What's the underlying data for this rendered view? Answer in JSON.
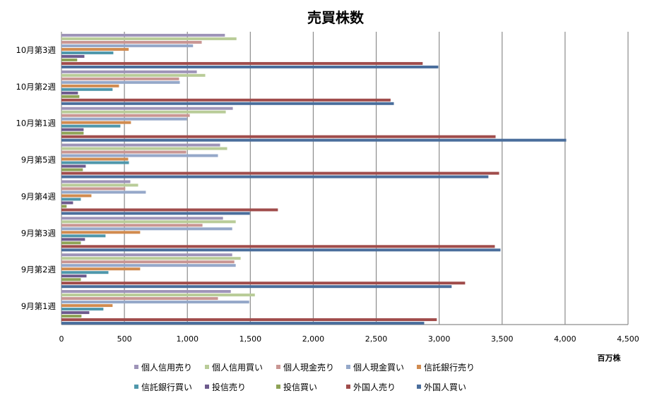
{
  "chart_data": {
    "type": "bar",
    "orientation": "horizontal",
    "title": "売買株数",
    "xlabel": "百万株",
    "ylabel": "",
    "xlim": [
      0,
      4500
    ],
    "xticks": [
      0,
      500,
      1000,
      1500,
      2000,
      2500,
      3000,
      3500,
      4000,
      4500
    ],
    "xtick_labels": [
      "0",
      "500",
      "1,000",
      "1,500",
      "2,000",
      "2,500",
      "3,000",
      "3,500",
      "4,000",
      "4,500"
    ],
    "grid": "vertical",
    "legend_position": "bottom",
    "categories": [
      "9月第1週",
      "9月第2週",
      "9月第3週",
      "9月第4週",
      "9月第5週",
      "10月第1週",
      "10月第2週",
      "10月第3週"
    ],
    "series": [
      {
        "name": "個人信用売り",
        "color": "#9e94b8",
        "values": [
          1345,
          1356,
          1283,
          547,
          1260,
          1361,
          1075,
          1298
        ]
      },
      {
        "name": "個人信用買い",
        "color": "#b9cc98",
        "values": [
          1536,
          1423,
          1384,
          609,
          1316,
          1305,
          1142,
          1390
        ]
      },
      {
        "name": "個人現金売り",
        "color": "#c99693",
        "values": [
          1243,
          1373,
          1120,
          507,
          991,
          1019,
          934,
          1114
        ]
      },
      {
        "name": "個人現金買い",
        "color": "#95a8c9",
        "values": [
          1491,
          1384,
          1356,
          670,
          1243,
          996,
          940,
          1045
        ]
      },
      {
        "name": "信託銀行売り",
        "color": "#d18b4f",
        "values": [
          406,
          625,
          625,
          238,
          530,
          552,
          457,
          534
        ]
      },
      {
        "name": "信託銀行買い",
        "color": "#4f97ab",
        "values": [
          333,
          373,
          350,
          154,
          536,
          468,
          406,
          412
        ]
      },
      {
        "name": "投信売り",
        "color": "#6d5a8d",
        "values": [
          221,
          199,
          187,
          92,
          193,
          176,
          131,
          182
        ]
      },
      {
        "name": "投信買い",
        "color": "#8ea356",
        "values": [
          159,
          154,
          154,
          41,
          170,
          176,
          142,
          125
        ]
      },
      {
        "name": "外国人売り",
        "color": "#a04c4b",
        "values": [
          2981,
          3206,
          3442,
          1719,
          3476,
          3448,
          2614,
          2869
        ]
      },
      {
        "name": "外国人買い",
        "color": "#4a6e9c",
        "values": [
          2881,
          3099,
          3487,
          1496,
          3391,
          4009,
          2640,
          2993
        ]
      }
    ]
  }
}
